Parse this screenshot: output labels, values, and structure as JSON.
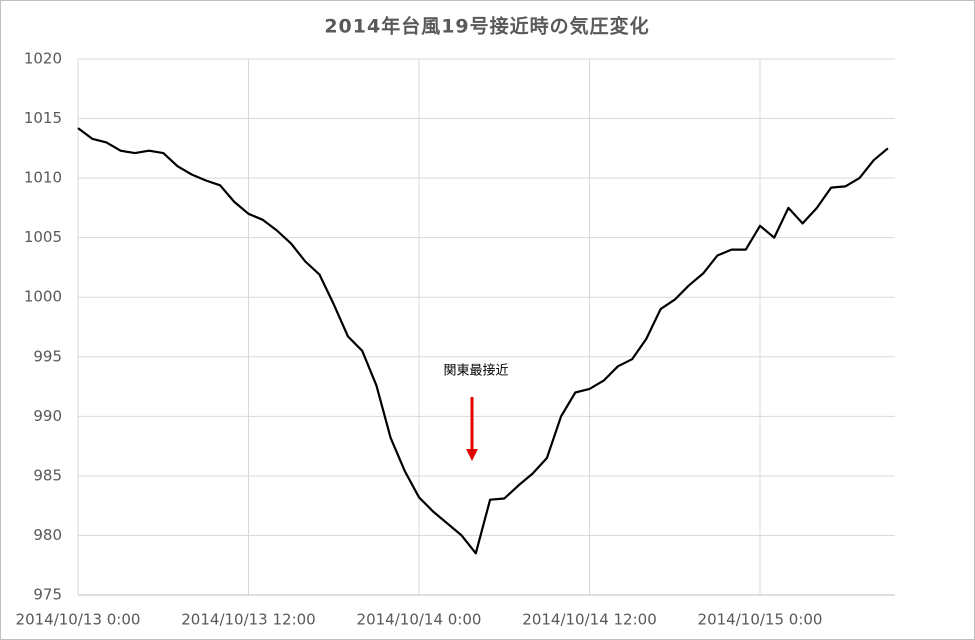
{
  "chart_data": {
    "type": "line",
    "title": "2014年台風19号接近時の気圧変化",
    "x": [
      "2014/10/13 0:00",
      "2014/10/13 1:00",
      "2014/10/13 2:00",
      "2014/10/13 3:00",
      "2014/10/13 4:00",
      "2014/10/13 5:00",
      "2014/10/13 6:00",
      "2014/10/13 7:00",
      "2014/10/13 8:00",
      "2014/10/13 9:00",
      "2014/10/13 10:00",
      "2014/10/13 11:00",
      "2014/10/13 12:00",
      "2014/10/13 13:00",
      "2014/10/13 14:00",
      "2014/10/13 15:00",
      "2014/10/13 16:00",
      "2014/10/13 17:00",
      "2014/10/13 18:00",
      "2014/10/13 19:00",
      "2014/10/13 20:00",
      "2014/10/13 21:00",
      "2014/10/13 22:00",
      "2014/10/13 23:00",
      "2014/10/14 0:00",
      "2014/10/14 1:00",
      "2014/10/14 2:00",
      "2014/10/14 3:00",
      "2014/10/14 4:00",
      "2014/10/14 5:00",
      "2014/10/14 6:00",
      "2014/10/14 7:00",
      "2014/10/14 8:00",
      "2014/10/14 9:00",
      "2014/10/14 10:00",
      "2014/10/14 11:00",
      "2014/10/14 12:00",
      "2014/10/14 13:00",
      "2014/10/14 14:00",
      "2014/10/14 15:00",
      "2014/10/14 16:00",
      "2014/10/14 17:00",
      "2014/10/14 18:00",
      "2014/10/14 19:00",
      "2014/10/14 20:00",
      "2014/10/14 21:00",
      "2014/10/14 22:00",
      "2014/10/14 23:00",
      "2014/10/15 0:00",
      "2014/10/15 1:00",
      "2014/10/15 2:00",
      "2014/10/15 3:00",
      "2014/10/15 4:00",
      "2014/10/15 5:00",
      "2014/10/15 6:00",
      "2014/10/15 7:00",
      "2014/10/15 8:00",
      "2014/10/15 9:00"
    ],
    "values": [
      1014.2,
      1013.3,
      1013.0,
      1012.3,
      1012.1,
      1012.3,
      1012.1,
      1011.0,
      1010.3,
      1009.8,
      1009.4,
      1008.0,
      1007.0,
      1006.5,
      1005.6,
      1004.5,
      1003.0,
      1001.9,
      999.4,
      996.7,
      995.5,
      992.6,
      988.2,
      985.4,
      983.2,
      982.0,
      981.0,
      980.0,
      978.5,
      983.0,
      983.1,
      984.2,
      985.2,
      986.5,
      990.0,
      992.0,
      992.3,
      993.0,
      994.2,
      994.8,
      996.5,
      999.0,
      999.8,
      1001.0,
      1002.0,
      1003.5,
      1004.0,
      1004.0,
      1006.0,
      1005.0,
      1007.5,
      1006.2,
      1007.5,
      1009.2,
      1009.3,
      1010.0,
      1011.5,
      1012.5
    ],
    "color": "#000000",
    "xlim": [
      "2014/10/13 0:00",
      "2014/10/15 9:30"
    ],
    "xticks": [
      "2014/10/13 0:00",
      "2014/10/13 12:00",
      "2014/10/14 0:00",
      "2014/10/14 12:00",
      "2014/10/15 0:00"
    ],
    "ylim": [
      975,
      1020
    ],
    "yticks": [
      975,
      980,
      985,
      990,
      995,
      1000,
      1005,
      1010,
      1015,
      1020
    ],
    "grid": true,
    "annotation": {
      "text": "関東最接近",
      "color": "#e00000"
    }
  }
}
